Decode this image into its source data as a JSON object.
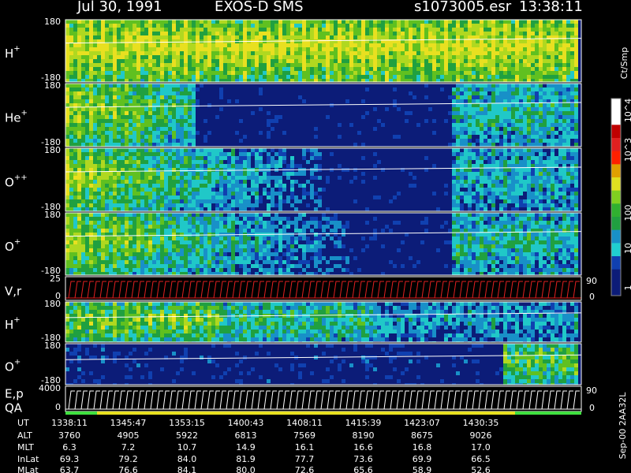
{
  "header": {
    "date": "Jul 30, 1991",
    "instrument": "EXOS-D SMS",
    "file": "s1073005.esr",
    "time": "13:38:11"
  },
  "panels": [
    {
      "label": "H",
      "sup": "+",
      "top": "180",
      "bottom": "-180"
    },
    {
      "label": "He",
      "sup": "+",
      "top": "180",
      "bottom": "-180"
    },
    {
      "label": "O",
      "sup": "++",
      "top": "180",
      "bottom": "-180"
    },
    {
      "label": "O",
      "sup": "+",
      "top": "180",
      "bottom": "-180"
    },
    {
      "label": "V,r",
      "top": "25",
      "bottom": "0",
      "right_top": "90",
      "right_bottom": "0"
    },
    {
      "label": "H",
      "sup": "+",
      "top": "180",
      "bottom": "-180"
    },
    {
      "label": "O",
      "sup": "+",
      "top": "180",
      "bottom": "-180"
    },
    {
      "label": "E,p",
      "label2": "QA",
      "top": "4000",
      "bottom": "0",
      "right_top": "90",
      "right_bottom": "0"
    }
  ],
  "colorbar": {
    "title": "Ct/Smp",
    "labels": [
      "10^4",
      "10^3",
      "100",
      "10",
      "1"
    ]
  },
  "footer": {
    "rows": [
      {
        "name": "UT",
        "values": [
          "1338:11",
          "1345:47",
          "1353:15",
          "1400:43",
          "1408:11",
          "1415:39",
          "1423:07",
          "1430:35"
        ]
      },
      {
        "name": "ALT",
        "values": [
          "3760",
          "4905",
          "5922",
          "6813",
          "7569",
          "8190",
          "8675",
          "9026"
        ]
      },
      {
        "name": "MLT",
        "values": [
          "6.3",
          "7.2",
          "10.7",
          "14.9",
          "16.1",
          "16.6",
          "16.8",
          "17.0"
        ]
      },
      {
        "name": "InLat",
        "values": [
          "69.3",
          "79.2",
          "84.0",
          "81.9",
          "77.7",
          "73.6",
          "69.9",
          "66.5"
        ]
      },
      {
        "name": "MLat",
        "values": [
          "63.7",
          "76.6",
          "84.1",
          "80.0",
          "72.6",
          "65.6",
          "58.9",
          "52.6"
        ]
      }
    ]
  },
  "side_note": "Sep-00  2AA32L"
}
